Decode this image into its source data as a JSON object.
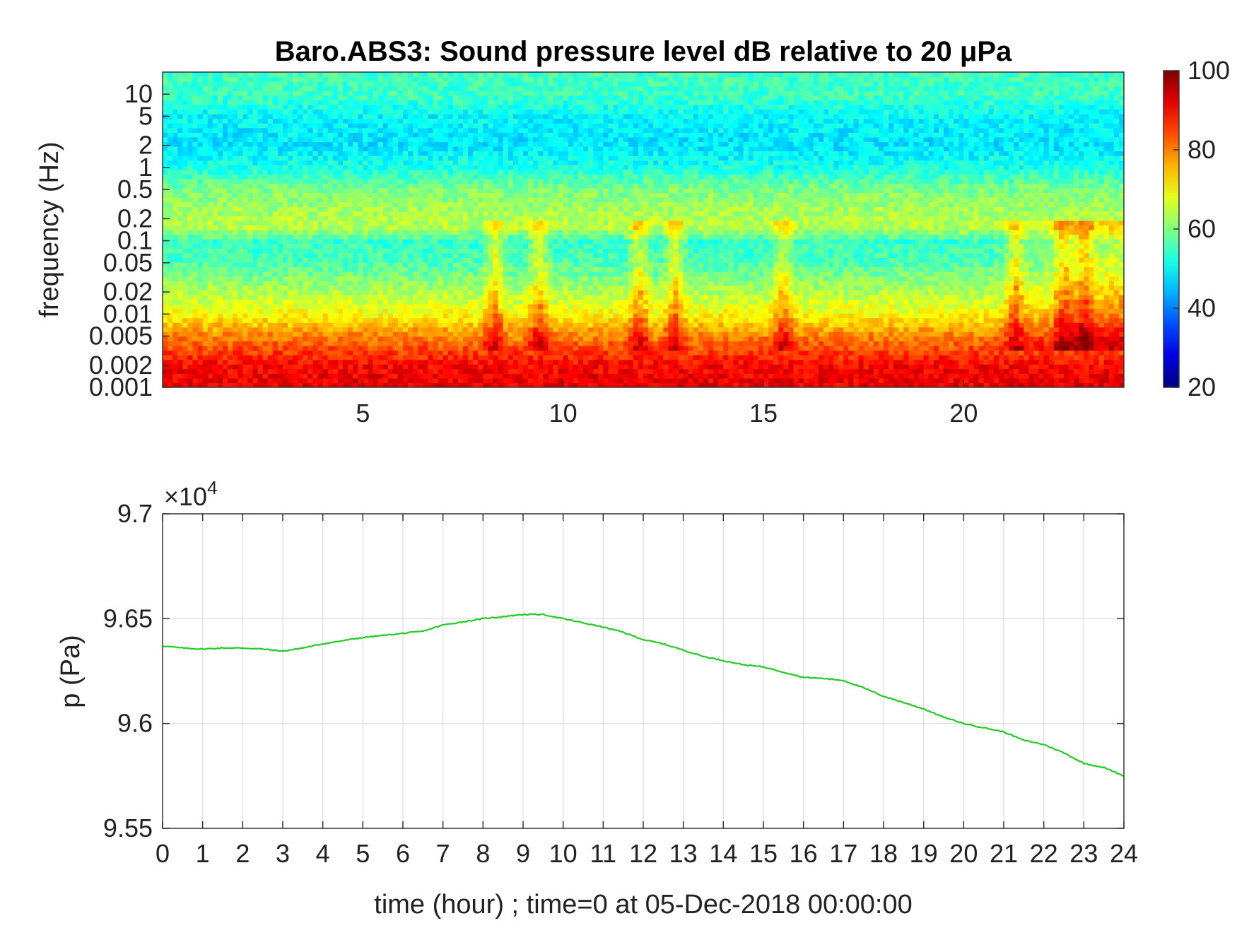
{
  "chart_data": [
    {
      "type": "heatmap",
      "title": "Baro.ABS3: Sound pressure level dB relative to 20 μPa",
      "ylabel": "frequency (Hz)",
      "xlabel": "",
      "x_ticks": [
        "5",
        "10",
        "15",
        "20"
      ],
      "x_tick_values": [
        5,
        10,
        15,
        20
      ],
      "xlim": [
        0,
        24
      ],
      "y_scale": "log",
      "y_ticks": [
        "10",
        "5",
        "2",
        "1",
        "0.5",
        "0.2",
        "0.1",
        "0.05",
        "0.02",
        "0.01",
        "0.005",
        "0.002",
        "0.001"
      ],
      "y_tick_values": [
        10,
        5,
        2,
        1,
        0.5,
        0.2,
        0.1,
        0.05,
        0.02,
        0.01,
        0.005,
        0.002,
        0.001
      ],
      "ylim": [
        0.001,
        20
      ],
      "colorbar": {
        "ticks": [
          "100",
          "80",
          "60",
          "40",
          "20"
        ],
        "tick_values": [
          100,
          80,
          60,
          40,
          20
        ],
        "range": [
          20,
          100
        ],
        "colormap": "jet"
      },
      "level_profile_db": {
        "freq_hz": [
          0.001,
          0.002,
          0.005,
          0.01,
          0.02,
          0.05,
          0.1,
          0.15,
          0.2,
          0.5,
          1,
          2,
          5,
          10,
          20
        ],
        "level_db": [
          92,
          90,
          80,
          70,
          64,
          56,
          54,
          64,
          64,
          60,
          52,
          48,
          50,
          55,
          55
        ]
      },
      "events_hour": [
        8.3,
        9.4,
        11.9,
        12.8,
        15.5,
        21.3,
        22.5,
        23.0
      ]
    },
    {
      "type": "line",
      "xlabel": "time (hour) ; time=0 at 05-Dec-2018 00:00:00",
      "ylabel": "p (Pa)",
      "y_exponent_label": "×10",
      "y_exponent": "4",
      "xlim": [
        0,
        24
      ],
      "ylim": [
        95500,
        97000
      ],
      "x_ticks": [
        "0",
        "1",
        "2",
        "3",
        "4",
        "5",
        "6",
        "7",
        "8",
        "9",
        "10",
        "11",
        "12",
        "13",
        "14",
        "15",
        "16",
        "17",
        "18",
        "19",
        "20",
        "21",
        "22",
        "23",
        "24"
      ],
      "y_ticks": [
        "9.55",
        "9.6",
        "9.65",
        "9.7"
      ],
      "y_tick_values": [
        95500,
        96000,
        96500,
        97000
      ],
      "grid": true,
      "series": [
        {
          "color": "#22cc22",
          "x": [
            0,
            0.5,
            1,
            1.5,
            2,
            2.5,
            3,
            3.5,
            4,
            4.5,
            5,
            5.5,
            6,
            6.5,
            7,
            7.5,
            8,
            8.5,
            9,
            9.5,
            10,
            10.5,
            11,
            11.5,
            12,
            12.5,
            13,
            13.5,
            14,
            14.5,
            15,
            15.5,
            16,
            16.5,
            17,
            17.5,
            18,
            18.5,
            19,
            19.5,
            20,
            20.5,
            21,
            21.5,
            22,
            22.5,
            23,
            23.5,
            24
          ],
          "y": [
            96370,
            96360,
            96355,
            96360,
            96360,
            96355,
            96345,
            96360,
            96380,
            96395,
            96410,
            96420,
            96430,
            96440,
            96470,
            96485,
            96500,
            96510,
            96520,
            96520,
            96500,
            96480,
            96460,
            96435,
            96400,
            96380,
            96350,
            96320,
            96300,
            96280,
            96270,
            96245,
            96220,
            96215,
            96205,
            96170,
            96130,
            96100,
            96070,
            96030,
            96000,
            95980,
            95960,
            95920,
            95900,
            95860,
            95810,
            95790,
            95750
          ]
        }
      ]
    }
  ]
}
